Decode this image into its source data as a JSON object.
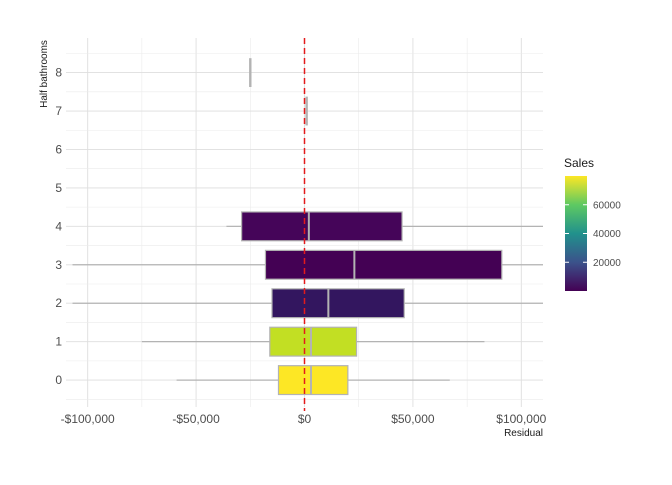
{
  "chart_data": {
    "type": "boxplot",
    "orientation": "horizontal",
    "xlabel": "Residual",
    "ylabel": "Half bathrooms",
    "xlim": [
      -110000,
      110000
    ],
    "ylim": [
      -0.7,
      8.9
    ],
    "x_ticks": [
      -100000,
      -50000,
      0,
      50000,
      100000
    ],
    "x_tick_labels": [
      "-$100,000",
      "-$50,000",
      "$0",
      "$50,000",
      "$100,000"
    ],
    "y_ticks": [
      0,
      1,
      2,
      3,
      4,
      5,
      6,
      7,
      8
    ],
    "y_tick_labels": [
      "0",
      "1",
      "2",
      "3",
      "4",
      "5",
      "6",
      "7",
      "8"
    ],
    "grid": true,
    "reference_line": {
      "x": 0,
      "color": "#e31a1c",
      "style": "dashed"
    },
    "boxes": [
      {
        "category": 0,
        "whisker_low": -59000,
        "q1": -12000,
        "median": 3000,
        "q3": 20000,
        "whisker_high": 67000,
        "sales": 78000,
        "color": "#fde725"
      },
      {
        "category": 1,
        "whisker_low": -75000,
        "q1": -16000,
        "median": 3000,
        "q3": 24000,
        "whisker_high": 83000,
        "sales": 70000,
        "color": "#c2df23"
      },
      {
        "category": 2,
        "whisker_low": -107000,
        "q1": -15000,
        "median": 11000,
        "q3": 46000,
        "whisker_high": 110000,
        "sales": 12000,
        "color": "#33165f"
      },
      {
        "category": 3,
        "whisker_low": -107000,
        "q1": -18000,
        "median": 23000,
        "q3": 91000,
        "whisker_high": 110000,
        "sales": 500,
        "color": "#440154"
      },
      {
        "category": 4,
        "whisker_low": -36000,
        "q1": -29000,
        "median": 2000,
        "q3": 45000,
        "whisker_high": 110000,
        "sales": 1500,
        "color": "#450559"
      },
      {
        "category": 7,
        "whisker_low": 1000,
        "q1": 1000,
        "median": 1000,
        "q3": 1000,
        "whisker_high": 1000,
        "sales": null,
        "color": null
      },
      {
        "category": 8,
        "whisker_low": -25000,
        "q1": -25000,
        "median": -25000,
        "q3": -25000,
        "whisker_high": -25000,
        "sales": null,
        "color": null
      }
    ],
    "legend": {
      "title": "Sales",
      "placement": "right",
      "colormap": "viridis",
      "stops": [
        "#440154",
        "#3b528b",
        "#21918c",
        "#5ec962",
        "#fde725"
      ],
      "range": [
        0,
        80000
      ],
      "ticks": [
        20000,
        40000,
        60000
      ],
      "tick_labels": [
        "20000",
        "40000",
        "60000"
      ]
    }
  }
}
